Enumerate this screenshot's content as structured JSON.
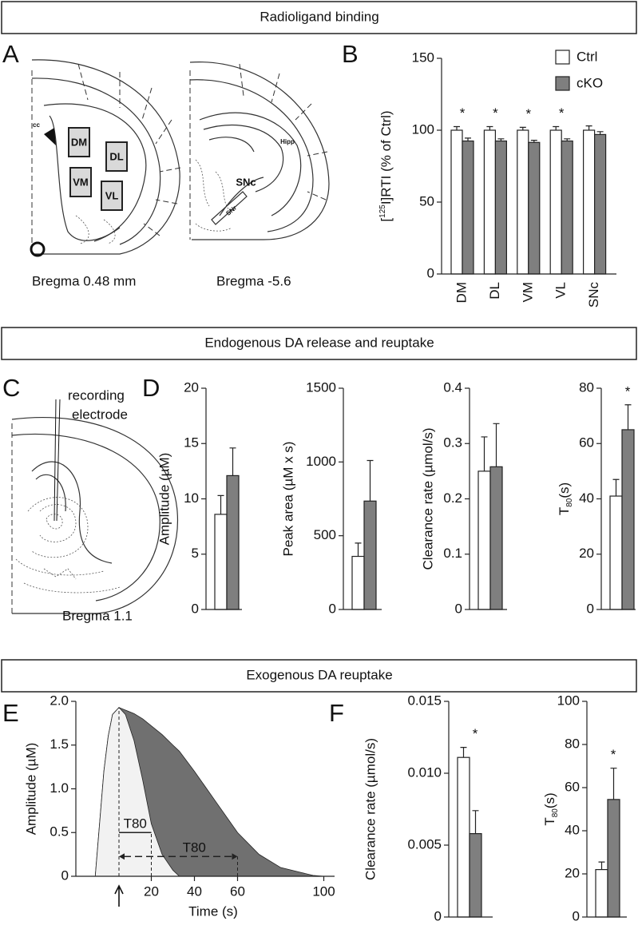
{
  "sections": [
    "Radioligand binding",
    "Endogenous DA release and reuptake",
    "Exogenous DA reuptake"
  ],
  "panel_labels": [
    "A",
    "B",
    "C",
    "D",
    "E",
    "F"
  ],
  "diagram": {
    "A": {
      "regions": [
        "DM",
        "DL",
        "VM",
        "VL"
      ],
      "captions": [
        "Bregma 0.48 mm",
        "Bregma -5.6"
      ],
      "labels": [
        "cc",
        "SNc",
        "SNr",
        "Hipp"
      ]
    },
    "C": {
      "labels": [
        "recording",
        "electrode"
      ],
      "caption": "Bregma 1.1"
    }
  },
  "chart_data": [
    {
      "type": "bar",
      "y_label": [
        "[",
        "125",
        "I]RTI (% of Ctrl)"
      ],
      "categories": [
        "DM",
        "DL",
        "VM",
        "VL",
        "SNc"
      ],
      "series": [
        {
          "name": "Ctrl",
          "color": "#ffffff",
          "values": [
            100,
            100,
            100,
            100,
            100
          ],
          "errors": [
            2.5,
            2.5,
            2,
            2.5,
            3
          ]
        },
        {
          "name": "cKO",
          "color": "#7f7f7f",
          "values": [
            92.5,
            92.5,
            91.5,
            92.5,
            97
          ],
          "errors": [
            2,
            1.5,
            1.5,
            1.5,
            2
          ]
        }
      ],
      "annotations": [
        "*",
        "*",
        "*",
        "*",
        null
      ],
      "ylim": [
        0,
        150
      ],
      "yticks": [
        0,
        50,
        100,
        150
      ],
      "legend": "top-right"
    },
    {
      "type": "bar",
      "y_label": "Amplitude (µM)",
      "values": [
        8.6,
        12.1
      ],
      "errors": [
        1.7,
        2.5
      ],
      "colors": [
        "#ffffff",
        "#7f7f7f"
      ],
      "ylim": [
        0,
        20
      ],
      "yticks": [
        0,
        5,
        10,
        15,
        20
      ]
    },
    {
      "type": "bar",
      "y_label": "Peak area (µM x s)",
      "values": [
        360,
        735
      ],
      "errors": [
        90,
        275
      ],
      "colors": [
        "#ffffff",
        "#7f7f7f"
      ],
      "ylim": [
        0,
        1500
      ],
      "yticks": [
        0,
        500,
        1000,
        1500
      ]
    },
    {
      "type": "bar",
      "y_label": "Clearance rate (µmol/s)",
      "values": [
        0.25,
        0.258
      ],
      "errors": [
        0.062,
        0.078
      ],
      "colors": [
        "#ffffff",
        "#7f7f7f"
      ],
      "ylim": [
        0,
        0.4
      ],
      "yticks": [
        0,
        0.1,
        0.2,
        0.3,
        0.4
      ]
    },
    {
      "type": "bar",
      "y_label": [
        "T",
        "80",
        "(s)"
      ],
      "values": [
        41,
        65
      ],
      "errors": [
        6,
        9
      ],
      "colors": [
        "#ffffff",
        "#7f7f7f"
      ],
      "annotation": "*",
      "ylim": [
        0,
        80
      ],
      "yticks": [
        0,
        20,
        40,
        60,
        80
      ]
    },
    {
      "type": "area",
      "x_label": "Time (s)",
      "y_label": "Amplitude (µM)",
      "x": [
        -6,
        -4,
        -2,
        0,
        2,
        5,
        8,
        12,
        16,
        20,
        25,
        30,
        33,
        40,
        50,
        60,
        70,
        80,
        90,
        95,
        100
      ],
      "series": [
        {
          "color": "#f2f2f2",
          "values": [
            0,
            0.6,
            1.2,
            1.6,
            1.85,
            1.93,
            1.85,
            1.55,
            1.1,
            0.6,
            0.25,
            0.07,
            0,
            null,
            null,
            null,
            null,
            null,
            null,
            null,
            null
          ]
        },
        {
          "color": "#707070",
          "values": [
            0,
            0.6,
            1.2,
            1.6,
            1.85,
            1.93,
            1.9,
            1.86,
            1.8,
            1.72,
            1.62,
            1.5,
            1.43,
            1.2,
            0.85,
            0.5,
            0.25,
            0.1,
            0.04,
            0.01,
            0
          ]
        }
      ],
      "annotations": [
        "T80",
        "T80"
      ],
      "xlim": [
        -15,
        105
      ],
      "xticks": [
        20,
        40,
        60,
        100
      ],
      "ylim": [
        0,
        2
      ],
      "yticks": [
        0,
        0.5,
        {
          "value": 1,
          "label": "1.0"
        },
        1.5,
        {
          "value": 2,
          "label": "2.0"
        }
      ]
    },
    {
      "type": "bar",
      "y_label": "Clearance rate (µmol/s)",
      "values": [
        0.0111,
        0.0058
      ],
      "errors": [
        0.0007,
        0.0016
      ],
      "colors": [
        "#ffffff",
        "#7f7f7f"
      ],
      "annotation": "*",
      "ylim": [
        0,
        0.015
      ],
      "yticks": [
        0,
        0.005,
        {
          "value": 0.01,
          "label": "0.010"
        },
        0.015
      ]
    },
    {
      "type": "bar",
      "y_label": [
        "T",
        "80",
        "(s)"
      ],
      "values": [
        22,
        54.5
      ],
      "errors": [
        3.5,
        14.5
      ],
      "colors": [
        "#ffffff",
        "#7f7f7f"
      ],
      "annotation": "*",
      "ylim": [
        0,
        100
      ],
      "yticks": [
        0,
        20,
        40,
        60,
        80,
        100
      ]
    }
  ]
}
